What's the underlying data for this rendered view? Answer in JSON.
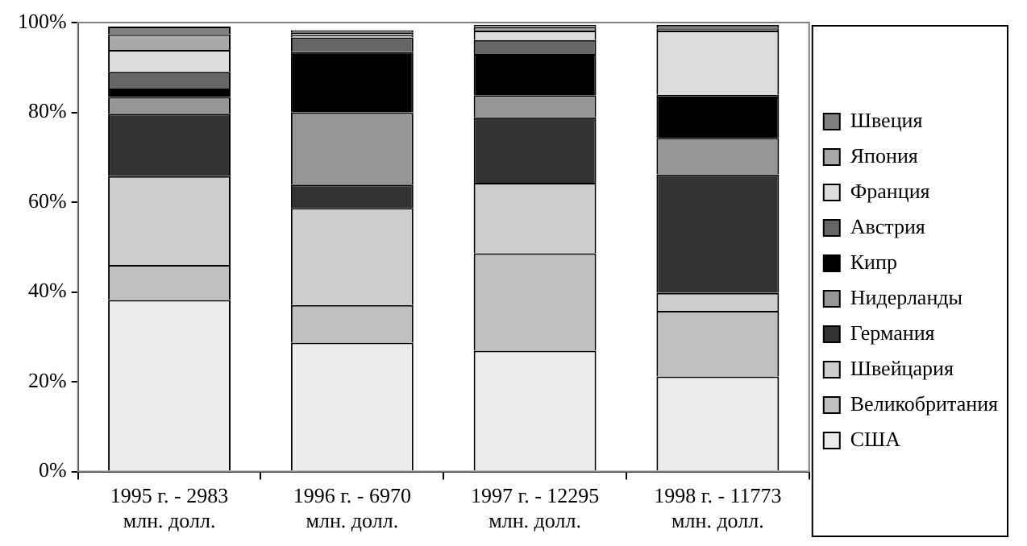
{
  "chart_data": {
    "type": "bar",
    "stacked": true,
    "categories": [
      "1995 г. - 2983\nмлн. долл.",
      "1996 г. - 6970\nмлн. долл.",
      "1997 г. - 12295\nмлн. долл.",
      "1998 г. - 11773\nмлн. долл."
    ],
    "series": [
      {
        "name": "США",
        "color": "#ebebeb",
        "values": [
          38.2,
          28.7,
          26.9,
          21.2
        ]
      },
      {
        "name": "Великобритания",
        "color": "#c0c0c0",
        "values": [
          7.8,
          8.4,
          21.7,
          14.6
        ]
      },
      {
        "name": "Швейцария",
        "color": "#cdcdcd",
        "values": [
          19.8,
          21.6,
          15.7,
          4.0
        ]
      },
      {
        "name": "Германия",
        "color": "#333333",
        "values": [
          13.9,
          5.2,
          14.6,
          26.4
        ]
      },
      {
        "name": "Нидерланды",
        "color": "#969696",
        "values": [
          3.7,
          16.1,
          4.9,
          8.1
        ]
      },
      {
        "name": "Кипр",
        "color": "#000000",
        "values": [
          1.9,
          13.4,
          9.2,
          9.2
        ]
      },
      {
        "name": "Австрия",
        "color": "#666666",
        "values": [
          3.7,
          3.3,
          3.1,
          0.4
        ]
      },
      {
        "name": "Франция",
        "color": "#dcdcdc",
        "values": [
          4.9,
          0.5,
          2.1,
          14.3
        ]
      },
      {
        "name": "Япония",
        "color": "#a8a8a8",
        "values": [
          3.5,
          0.6,
          0.8,
          0.5
        ]
      },
      {
        "name": "Швеция",
        "color": "#808080",
        "values": [
          1.7,
          0.5,
          0.5,
          0.8
        ]
      }
    ],
    "ylim": [
      0,
      100
    ],
    "yticks": [
      {
        "value": 0,
        "label": "0%"
      },
      {
        "value": 20,
        "label": "20%"
      },
      {
        "value": 40,
        "label": "40%"
      },
      {
        "value": 60,
        "label": "60%"
      },
      {
        "value": 80,
        "label": "80%"
      },
      {
        "value": 100,
        "label": "100%"
      }
    ],
    "grid": false,
    "legend": "right"
  }
}
